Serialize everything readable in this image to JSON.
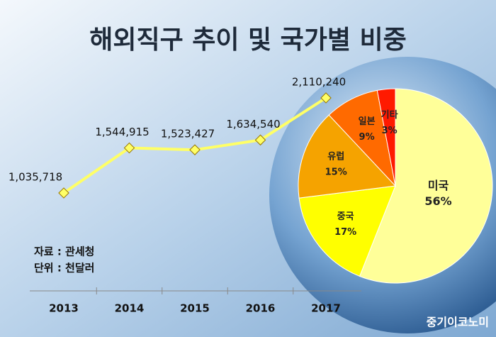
{
  "title": "해외직구 추이 및 국가별 비중",
  "notes": [
    "자료 : 관세청",
    "단위 : 천달러"
  ],
  "brand": "중기이코노미",
  "chart_data": [
    {
      "type": "line",
      "categories": [
        "2013",
        "2014",
        "2015",
        "2016",
        "2017"
      ],
      "values": [
        1035718,
        1544915,
        1523427,
        1634540,
        2110240
      ],
      "value_labels": [
        "1,035,718",
        "1,544,915",
        "1,523,427",
        "1,634,540",
        "2,110,240"
      ],
      "color": "#ffff66"
    },
    {
      "type": "pie",
      "categories": [
        "미국",
        "중국",
        "유럽",
        "일본",
        "기타"
      ],
      "values": [
        56,
        17,
        15,
        9,
        3
      ],
      "value_labels": [
        "56%",
        "17%",
        "15%",
        "9%",
        "3%"
      ],
      "colors": [
        "#ffff99",
        "#ffff00",
        "#f5a300",
        "#ff6a00",
        "#ff1a00"
      ]
    }
  ]
}
